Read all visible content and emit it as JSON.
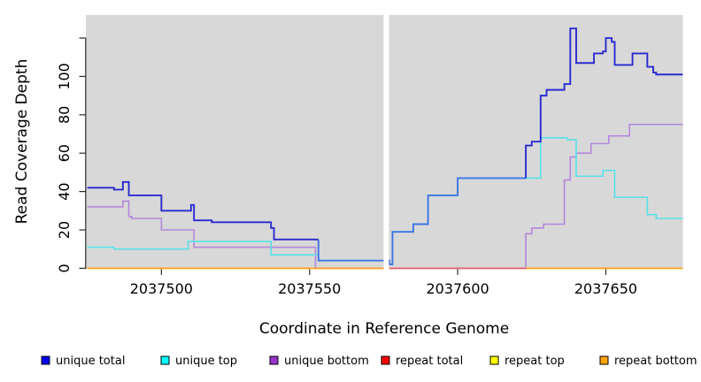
{
  "chart_data": {
    "type": "line",
    "subtype": "step",
    "title": "",
    "xlabel": "Coordinate in Reference Genome",
    "ylabel": "Read Coverage Depth",
    "xlim": [
      2037474.5,
      2037676
    ],
    "ylim": [
      0,
      132
    ],
    "x_ticks": [
      2037500,
      2037550,
      2037600,
      2037650
    ],
    "x_tick_labels": [
      "2037500",
      "2037550",
      "2037600",
      "2037650"
    ],
    "y_ticks": [
      0,
      20,
      40,
      60,
      80,
      100,
      120
    ],
    "y_tick_labels": [
      "0",
      "20",
      "40",
      "60",
      "80",
      "100",
      ""
    ],
    "grid": false,
    "plot_bg_color": "#d8d8d8",
    "gap_region": {
      "from": 2037575.0,
      "to": 2037576.8,
      "color": "#ffffff"
    },
    "series": [
      {
        "name": "repeat top",
        "color": "#f5e626",
        "points": [
          [
            2037475,
            0
          ],
          [
            2037676,
            0
          ]
        ]
      },
      {
        "name": "unique bottom",
        "color": "#b287dc",
        "points": [
          [
            2037475,
            32
          ],
          [
            2037487,
            35
          ],
          [
            2037489,
            27
          ],
          [
            2037490,
            26
          ],
          [
            2037500,
            20
          ],
          [
            2037511,
            11
          ],
          [
            2037552,
            0
          ],
          [
            2037623,
            18
          ],
          [
            2037625,
            21
          ],
          [
            2037629,
            23
          ],
          [
            2037636,
            46
          ],
          [
            2037638,
            58
          ],
          [
            2037640,
            60
          ],
          [
            2037645,
            65
          ],
          [
            2037651,
            69
          ],
          [
            2037658,
            75
          ],
          [
            2037676,
            75
          ]
        ]
      },
      {
        "name": "repeat bottom",
        "color": "#ff9d1e",
        "points": [
          [
            2037475,
            0
          ],
          [
            2037676,
            0
          ]
        ]
      },
      {
        "name": "repeat total",
        "color": "#e2607d",
        "points": [
          [
            2037577,
            0
          ],
          [
            2037623,
            0
          ]
        ]
      },
      {
        "name": "unique top",
        "color": "#58e2e8",
        "points": [
          [
            2037475,
            11
          ],
          [
            2037484,
            10
          ],
          [
            2037509,
            14
          ],
          [
            2037537,
            7
          ],
          [
            2037553,
            4
          ],
          [
            2037577,
            2
          ],
          [
            2037578,
            19
          ],
          [
            2037585,
            23
          ],
          [
            2037590,
            38
          ],
          [
            2037600,
            47
          ],
          [
            2037628,
            68
          ],
          [
            2037637,
            67
          ],
          [
            2037640,
            48
          ],
          [
            2037649,
            51
          ],
          [
            2037653,
            37
          ],
          [
            2037664,
            28
          ],
          [
            2037667,
            26
          ],
          [
            2037676,
            26
          ]
        ]
      },
      {
        "name": "unique total",
        "color": "#2a2ad0",
        "overlap_color": "#3f74e4",
        "points": [
          [
            2037475,
            42
          ],
          [
            2037484,
            41
          ],
          [
            2037487,
            45
          ],
          [
            2037489,
            38
          ],
          [
            2037500,
            30
          ],
          [
            2037510,
            33
          ],
          [
            2037511,
            25
          ],
          [
            2037517,
            24
          ],
          [
            2037537,
            21
          ],
          [
            2037538,
            15
          ],
          [
            2037553,
            4
          ],
          [
            2037577,
            2
          ],
          [
            2037578,
            19
          ],
          [
            2037585,
            23
          ],
          [
            2037590,
            38
          ],
          [
            2037600,
            47
          ],
          [
            2037623,
            64
          ],
          [
            2037625,
            66
          ],
          [
            2037628,
            90
          ],
          [
            2037630,
            93
          ],
          [
            2037636,
            96
          ],
          [
            2037638,
            125
          ],
          [
            2037640,
            107
          ],
          [
            2037646,
            112
          ],
          [
            2037649,
            113
          ],
          [
            2037650,
            120
          ],
          [
            2037652,
            118
          ],
          [
            2037653,
            106
          ],
          [
            2037659,
            112
          ],
          [
            2037664,
            105
          ],
          [
            2037666,
            102
          ],
          [
            2037667,
            101
          ],
          [
            2037676,
            101
          ]
        ]
      }
    ],
    "legend": [
      {
        "label": "unique total",
        "color": "#0000eb"
      },
      {
        "label": "unique top",
        "color": "#00ffff"
      },
      {
        "label": "unique bottom",
        "color": "#9832cc"
      },
      {
        "label": "repeat total",
        "color": "#ff0000"
      },
      {
        "label": "repeat top",
        "color": "#ffff00"
      },
      {
        "label": "repeat bottom",
        "color": "#ffa500"
      }
    ],
    "legend_position": "bottom"
  }
}
